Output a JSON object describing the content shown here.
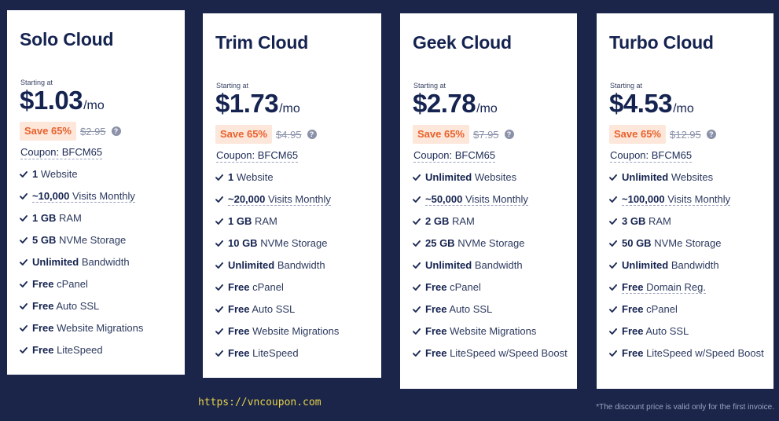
{
  "plans": [
    {
      "name": "Solo Cloud",
      "starting_label": "Starting at",
      "price": "$1.03",
      "period": "/mo",
      "save_label": "Save 65%",
      "old_price": "$2.95",
      "coupon": "Coupon: BFCM65",
      "features": [
        {
          "bold": "1",
          "text": " Website"
        },
        {
          "bold": "~10,000",
          "text": " Visits Monthly",
          "dashed": true
        },
        {
          "bold": "1 GB",
          "text": " RAM"
        },
        {
          "bold": "5 GB",
          "text": " NVMe Storage"
        },
        {
          "bold": "Unlimited",
          "text": " Bandwidth"
        },
        {
          "bold": "Free",
          "text": " cPanel"
        },
        {
          "bold": "Free",
          "text": " Auto SSL"
        },
        {
          "bold": "Free",
          "text": " Website Migrations"
        },
        {
          "bold": "Free",
          "text": " LiteSpeed"
        }
      ]
    },
    {
      "name": "Trim Cloud",
      "starting_label": "Starting at",
      "price": "$1.73",
      "period": "/mo",
      "save_label": "Save 65%",
      "old_price": "$4.95",
      "coupon": "Coupon: BFCM65",
      "features": [
        {
          "bold": "1",
          "text": " Website"
        },
        {
          "bold": "~20,000",
          "text": " Visits Monthly",
          "dashed": true
        },
        {
          "bold": "1 GB",
          "text": " RAM"
        },
        {
          "bold": "10 GB",
          "text": " NVMe Storage"
        },
        {
          "bold": "Unlimited",
          "text": " Bandwidth"
        },
        {
          "bold": "Free",
          "text": " cPanel"
        },
        {
          "bold": "Free",
          "text": " Auto SSL"
        },
        {
          "bold": "Free",
          "text": " Website Migrations"
        },
        {
          "bold": "Free",
          "text": " LiteSpeed"
        }
      ]
    },
    {
      "name": "Geek Cloud",
      "starting_label": "Starting at",
      "price": "$2.78",
      "period": "/mo",
      "save_label": "Save 65%",
      "old_price": "$7.95",
      "coupon": "Coupon: BFCM65",
      "features": [
        {
          "bold": "Unlimited",
          "text": " Websites"
        },
        {
          "bold": "~50,000",
          "text": " Visits Monthly",
          "dashed": true
        },
        {
          "bold": "2 GB",
          "text": " RAM"
        },
        {
          "bold": "25 GB",
          "text": " NVMe Storage"
        },
        {
          "bold": "Unlimited",
          "text": " Bandwidth"
        },
        {
          "bold": "Free",
          "text": " cPanel"
        },
        {
          "bold": "Free",
          "text": " Auto SSL"
        },
        {
          "bold": "Free",
          "text": " Website Migrations"
        },
        {
          "bold": "Free",
          "text": " LiteSpeed w/Speed Boost"
        }
      ]
    },
    {
      "name": "Turbo Cloud",
      "starting_label": "Starting at",
      "price": "$4.53",
      "period": "/mo",
      "save_label": "Save 65%",
      "old_price": "$12.95",
      "coupon": "Coupon: BFCM65",
      "features": [
        {
          "bold": "Unlimited",
          "text": " Websites"
        },
        {
          "bold": "~100,000",
          "text": " Visits Monthly",
          "dashed": true
        },
        {
          "bold": "3 GB",
          "text": " RAM"
        },
        {
          "bold": "50 GB",
          "text": " NVMe Storage"
        },
        {
          "bold": "Unlimited",
          "text": " Bandwidth"
        },
        {
          "bold": "Free",
          "text": " Domain Reg.",
          "dashed": true
        },
        {
          "bold": "Free",
          "text": " cPanel"
        },
        {
          "bold": "Free",
          "text": " Auto SSL"
        },
        {
          "bold": "Free",
          "text": " LiteSpeed w/Speed Boost"
        }
      ]
    }
  ],
  "footer": {
    "site_url": "https://vncoupon.com",
    "disclaimer": "*The discount price is valid only for the first invoice."
  },
  "icons": {
    "check": "check-icon",
    "help": "question-circle-icon"
  },
  "colors": {
    "background": "#1a2549",
    "save_badge_bg": "#fde6da",
    "save_badge_text": "#e8622c",
    "title": "#152350"
  }
}
